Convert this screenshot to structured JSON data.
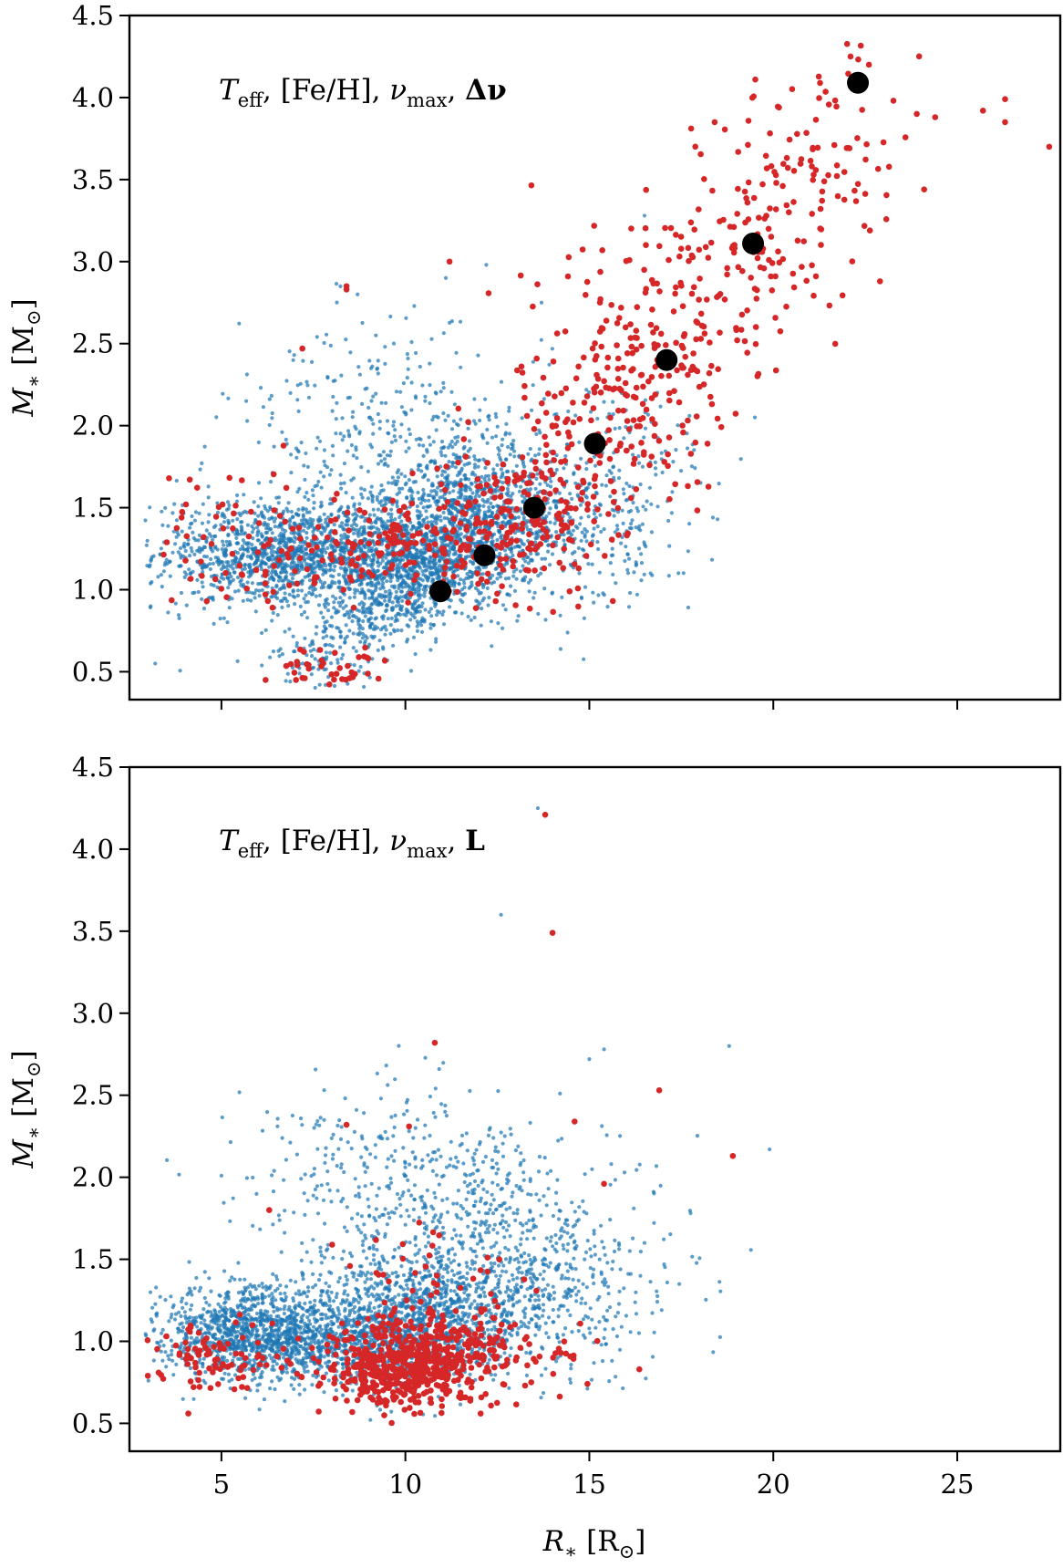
{
  "figure_title": "",
  "colors": {
    "blue": "#1f77b4",
    "red": "#d62728",
    "black": "#000000"
  },
  "chart_data": [
    {
      "type": "scatter",
      "panel": "top",
      "annotation": "T_eff,  [Fe/H],  ν_max,  Δν",
      "annotation_parts": {
        "t": "T",
        "t_sub": "eff",
        "feh": ",  [Fe/H],  ",
        "nu": "ν",
        "nu_sub": "max",
        "last": "Δν"
      },
      "xlabel": "R∗ [R⊙]",
      "ylabel": "M∗ [M⊙]",
      "xlim": [
        2.5,
        27.8
      ],
      "ylim": [
        0.33,
        4.5
      ],
      "xticks": [
        5,
        10,
        15,
        20,
        25
      ],
      "yticks": [
        0.5,
        1.0,
        1.5,
        2.0,
        2.5,
        3.0,
        3.5,
        4.0,
        4.5
      ],
      "ytick_labels": [
        "0.5",
        "1.0",
        "1.5",
        "2.0",
        "2.5",
        "3.0",
        "3.5",
        "4.0",
        "4.5"
      ],
      "series": [
        {
          "name": "blue sample",
          "color": "#1f77b4",
          "style": "small-dots",
          "clusters": [
            {
              "cx": 6.2,
              "cy": 1.22,
              "sx": 1.5,
              "sy": 0.17,
              "n": 900
            },
            {
              "cx": 9.2,
              "cy": 1.2,
              "sx": 1.6,
              "sy": 0.14,
              "n": 900
            },
            {
              "cx": 10.0,
              "cy": 0.95,
              "sx": 1.8,
              "sy": 0.16,
              "n": 700,
              "slope": 0.12
            },
            {
              "cx": 11.5,
              "cy": 1.5,
              "sx": 1.4,
              "sy": 0.2,
              "n": 700
            },
            {
              "cx": 13.0,
              "cy": 1.35,
              "sx": 1.8,
              "sy": 0.22,
              "n": 500
            },
            {
              "cx": 9.5,
              "cy": 1.9,
              "sx": 2.2,
              "sy": 0.35,
              "n": 350
            },
            {
              "cx": 15.5,
              "cy": 1.65,
              "sx": 1.5,
              "sy": 0.3,
              "n": 180
            }
          ],
          "extra_points": [
            [
              3.2,
              0.55
            ],
            [
              16.5,
              3.28
            ],
            [
              12.2,
              2.98
            ],
            [
              11.1,
              2.9
            ],
            [
              13.7,
              2.75
            ],
            [
              19.5,
              2.05
            ],
            [
              8.7,
              2.8
            ]
          ]
        },
        {
          "name": "red sample",
          "color": "#d62728",
          "style": "dots",
          "clusters": [
            {
              "cx": 10.5,
              "cy": 1.28,
              "sx": 2.2,
              "sy": 0.14,
              "n": 220
            },
            {
              "cx": 8.0,
              "cy": 0.52,
              "sx": 0.8,
              "sy": 0.06,
              "n": 40
            },
            {
              "cx": 5.5,
              "cy": 1.3,
              "sx": 1.2,
              "sy": 0.25,
              "n": 60
            },
            {
              "cx": 13.5,
              "cy": 1.5,
              "sx": 1.2,
              "sy": 0.22,
              "n": 150
            },
            {
              "cx": 15.5,
              "cy": 2.1,
              "sx": 1.3,
              "sy": 0.35,
              "n": 160
            },
            {
              "cx": 17.3,
              "cy": 2.6,
              "sx": 1.2,
              "sy": 0.4,
              "n": 120
            },
            {
              "cx": 19.5,
              "cy": 3.1,
              "sx": 1.2,
              "sy": 0.4,
              "n": 110
            },
            {
              "cx": 21.5,
              "cy": 3.7,
              "sx": 0.9,
              "sy": 0.3,
              "n": 70
            }
          ],
          "extra_points": [
            [
              8.4,
              2.85
            ],
            [
              8.4,
              2.83
            ],
            [
              11.2,
              3.0
            ],
            [
              7.2,
              2.47
            ],
            [
              6.2,
              0.45
            ],
            [
              4.6,
              0.93
            ],
            [
              25.7,
              3.92
            ],
            [
              26.3,
              3.99
            ],
            [
              26.3,
              3.85
            ],
            [
              27.5,
              3.7
            ],
            [
              24.1,
              3.44
            ],
            [
              22.9,
              2.88
            ],
            [
              23.9,
              3.9
            ],
            [
              24.4,
              3.88
            ],
            [
              22.1,
              4.25
            ],
            [
              22.6,
              4.2
            ]
          ]
        },
        {
          "name": "binned medians",
          "color": "#000000",
          "style": "large-markers",
          "x": [
            10.95,
            12.15,
            13.5,
            15.15,
            17.1,
            19.45,
            22.3
          ],
          "y": [
            0.99,
            1.21,
            1.5,
            1.89,
            2.4,
            3.11,
            4.09
          ]
        }
      ]
    },
    {
      "type": "scatter",
      "panel": "bottom",
      "annotation": "T_eff,  [Fe/H],  ν_max,  L",
      "annotation_parts": {
        "t": "T",
        "t_sub": "eff",
        "feh": ",  [Fe/H],  ",
        "nu": "ν",
        "nu_sub": "max",
        "last": "L"
      },
      "xlabel": "R∗ [R⊙]",
      "ylabel": "M∗ [M⊙]",
      "xlim": [
        2.5,
        27.8
      ],
      "ylim": [
        0.33,
        4.5
      ],
      "xticks": [
        5,
        10,
        15,
        20,
        25
      ],
      "xtick_labels": [
        "5",
        "10",
        "15",
        "20",
        "25"
      ],
      "yticks": [
        0.5,
        1.0,
        1.5,
        2.0,
        2.5,
        3.0,
        3.5,
        4.0,
        4.5
      ],
      "ytick_labels": [
        "0.5",
        "1.0",
        "1.5",
        "2.0",
        "2.5",
        "3.0",
        "3.5",
        "4.0",
        "4.5"
      ],
      "series": [
        {
          "name": "blue sample",
          "color": "#1f77b4",
          "style": "small-dots",
          "clusters": [
            {
              "cx": 5.8,
              "cy": 1.05,
              "sx": 1.3,
              "sy": 0.14,
              "n": 1100
            },
            {
              "cx": 9.0,
              "cy": 1.0,
              "sx": 1.5,
              "sy": 0.14,
              "n": 900
            },
            {
              "cx": 10.8,
              "cy": 1.2,
              "sx": 1.5,
              "sy": 0.17,
              "n": 700
            },
            {
              "cx": 11.0,
              "cy": 1.7,
              "sx": 2.5,
              "sy": 0.35,
              "n": 600
            },
            {
              "cx": 13.8,
              "cy": 1.3,
              "sx": 1.7,
              "sy": 0.25,
              "n": 350
            },
            {
              "cx": 9.5,
              "cy": 2.1,
              "sx": 2.0,
              "sy": 0.25,
              "n": 150
            }
          ],
          "extra_points": [
            [
              12.6,
              3.6
            ],
            [
              18.8,
              2.8
            ],
            [
              19.9,
              2.17
            ],
            [
              15.4,
              2.78
            ],
            [
              15.0,
              2.72
            ],
            [
              16.5,
              1.6
            ],
            [
              16.1,
              1.55
            ],
            [
              15.4,
              1.02
            ],
            [
              5.0,
              2.01
            ],
            [
              13.6,
              4.25
            ]
          ]
        },
        {
          "name": "red sample",
          "color": "#d62728",
          "style": "dots",
          "clusters": [
            {
              "cx": 10.0,
              "cy": 0.85,
              "sx": 1.1,
              "sy": 0.13,
              "n": 520
            },
            {
              "cx": 5.0,
              "cy": 0.9,
              "sx": 1.0,
              "sy": 0.1,
              "n": 90
            },
            {
              "cx": 12.0,
              "cy": 0.95,
              "sx": 1.5,
              "sy": 0.15,
              "n": 140
            },
            {
              "cx": 10.5,
              "cy": 1.4,
              "sx": 1.2,
              "sy": 0.2,
              "n": 40
            }
          ],
          "extra_points": [
            [
              13.8,
              4.21
            ],
            [
              14.0,
              3.49
            ],
            [
              10.8,
              2.82
            ],
            [
              16.9,
              2.53
            ],
            [
              14.6,
              2.34
            ],
            [
              18.9,
              2.13
            ],
            [
              8.4,
              2.32
            ],
            [
              10.1,
              2.31
            ],
            [
              15.4,
              1.96
            ],
            [
              6.3,
              1.8
            ],
            [
              3.0,
              0.79
            ],
            [
              4.1,
              0.56
            ]
          ]
        }
      ]
    }
  ]
}
